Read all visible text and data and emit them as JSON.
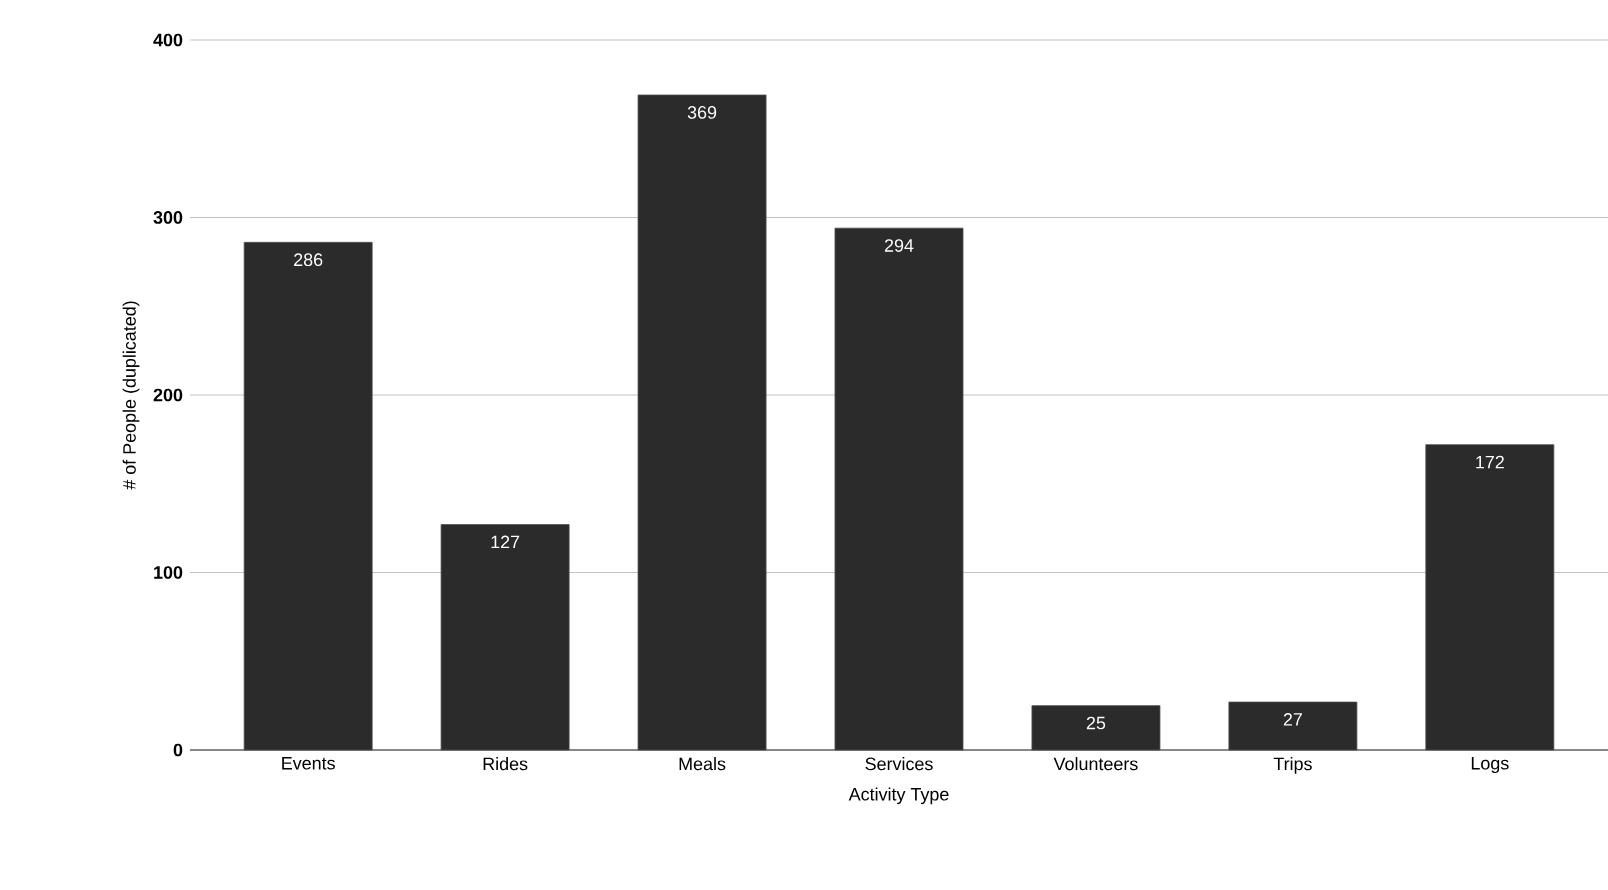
{
  "chart_data": {
    "type": "bar",
    "xlabel": "Activity Type",
    "ylabel": "# of People (duplicated)",
    "categories": [
      "Events",
      "Rides",
      "Meals",
      "Services",
      "Volunteers",
      "Trips",
      "Logs"
    ],
    "values": [
      286,
      127,
      369,
      294,
      25,
      27,
      172
    ],
    "color": "#2b2b2b",
    "ylim": [
      0,
      400
    ],
    "yticks": [
      0,
      100,
      200,
      300,
      400
    ],
    "grid": "y",
    "data_labels": true
  }
}
